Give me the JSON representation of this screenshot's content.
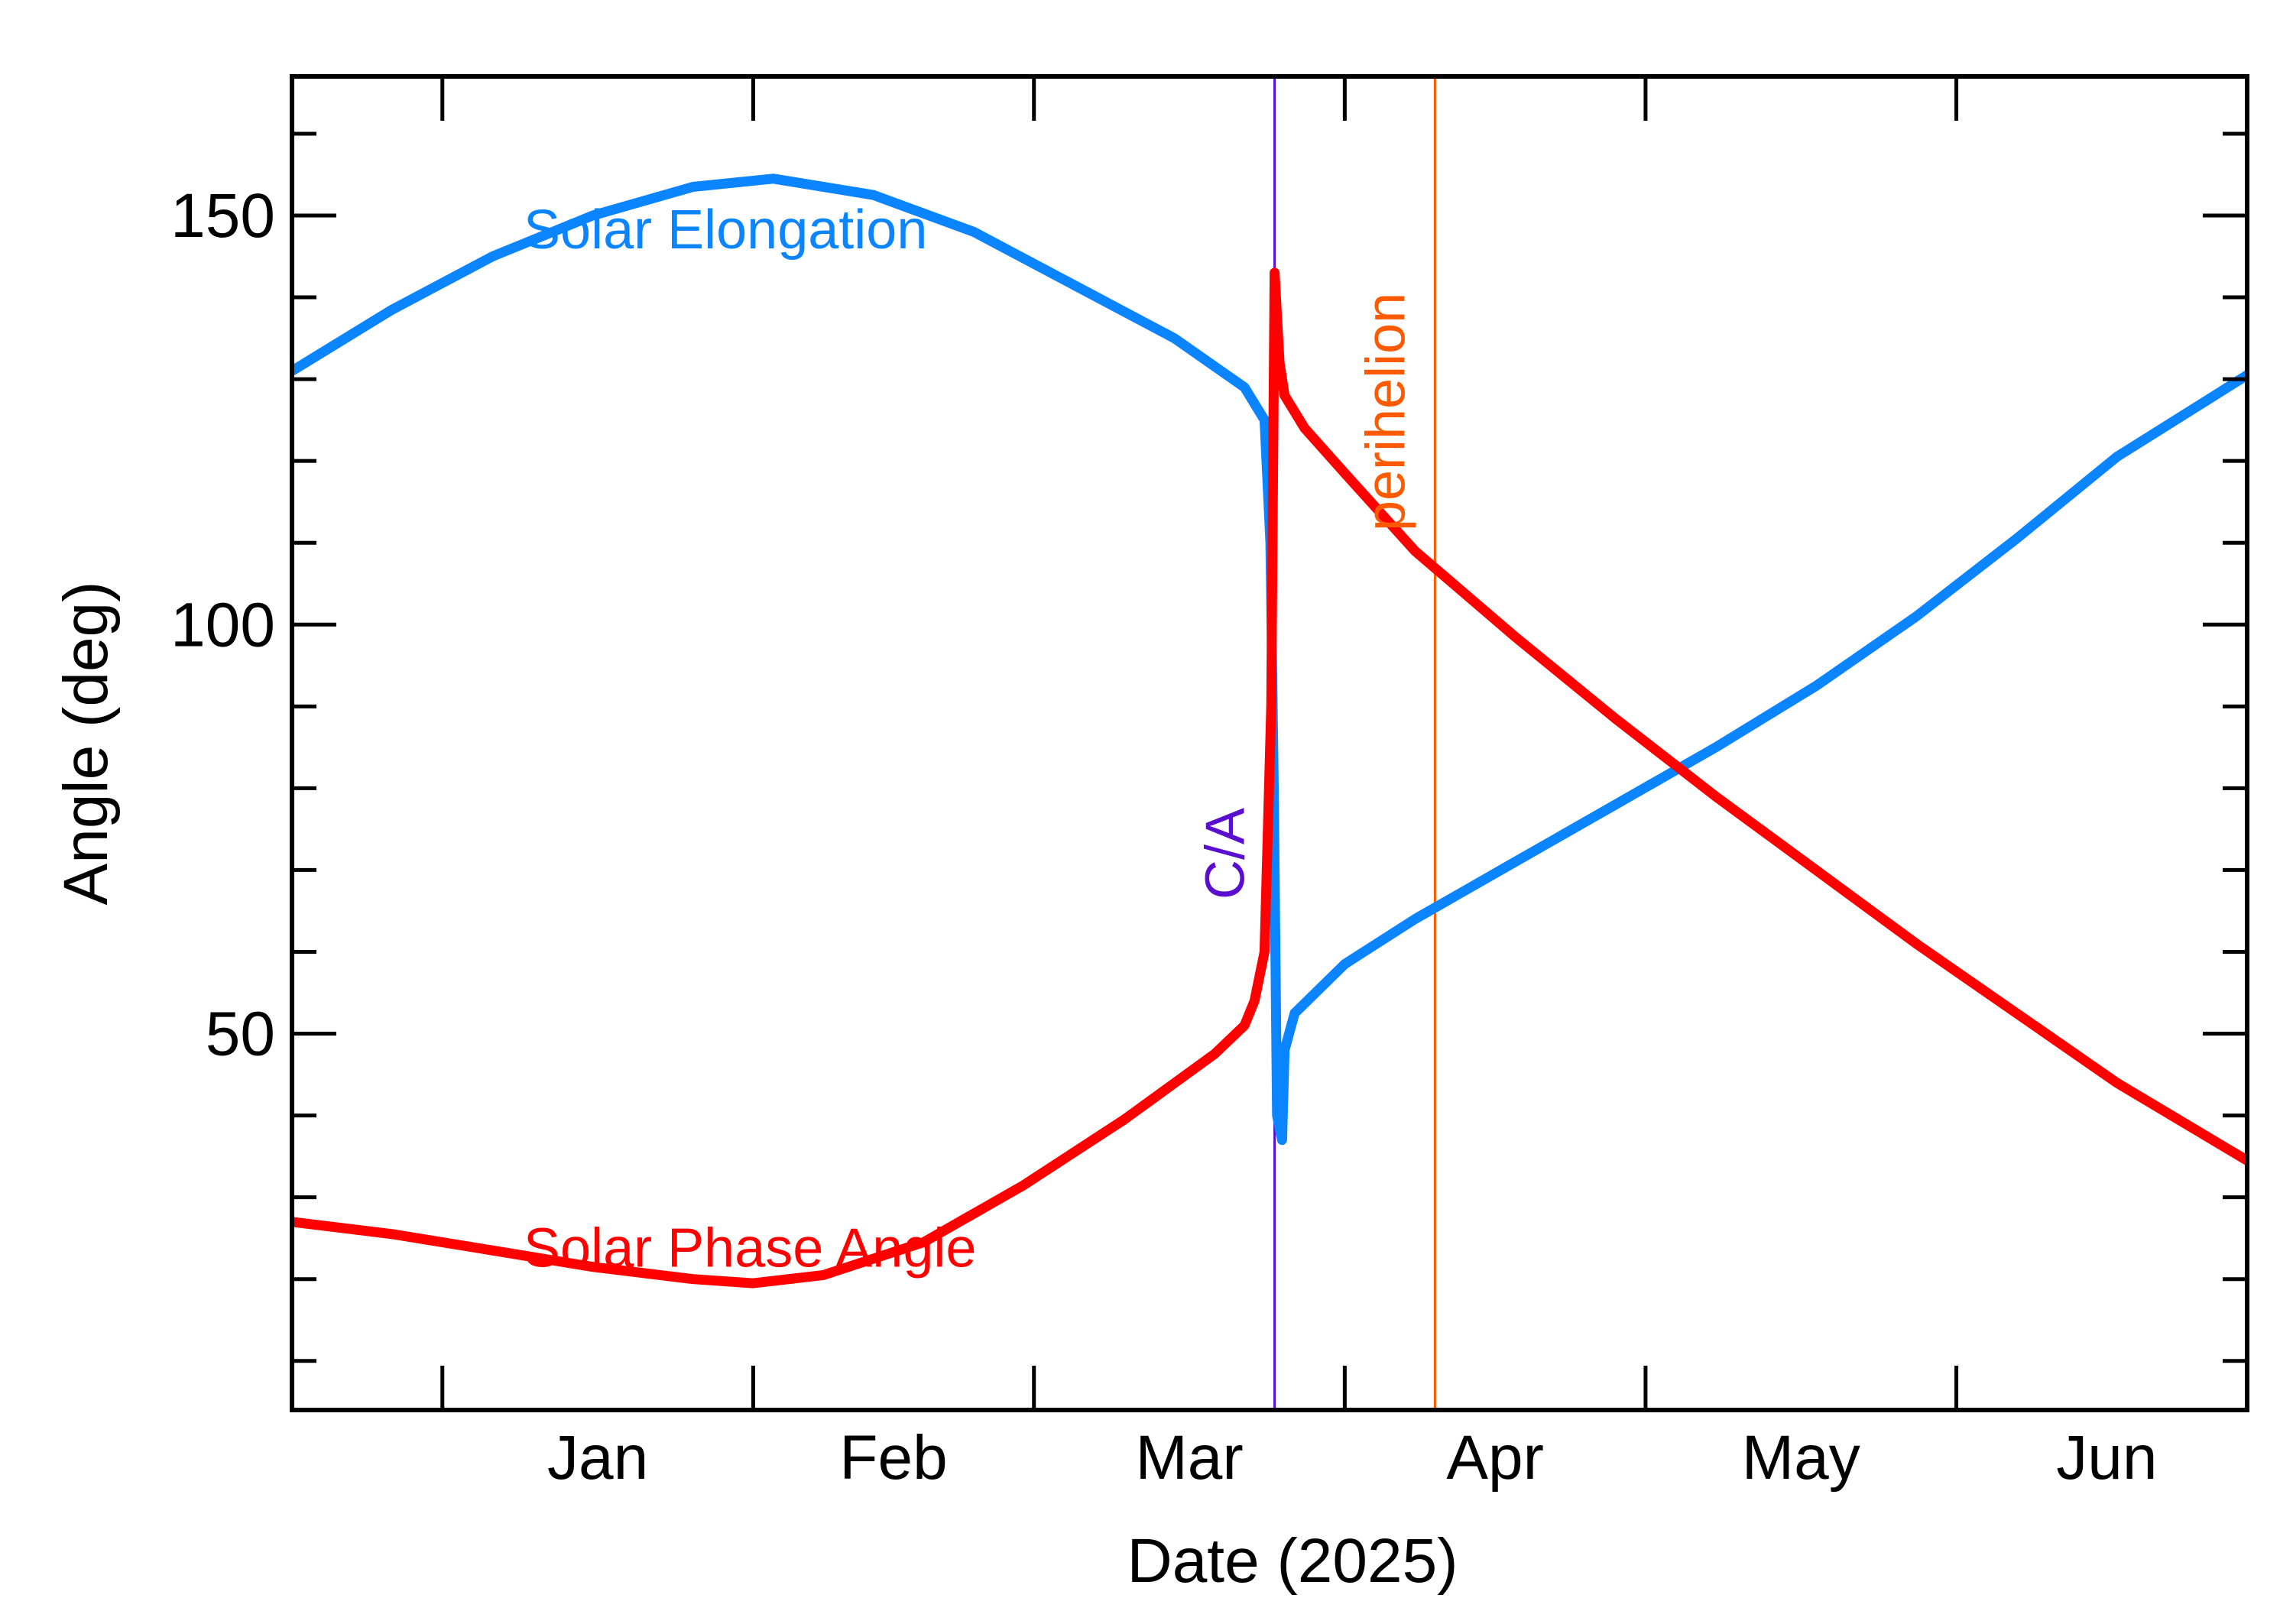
{
  "chart_data": {
    "type": "line",
    "xlabel": "Date (2025)",
    "ylabel": "Angle (deg)",
    "x_tick_labels": [
      "Jan",
      "Feb",
      "Mar",
      "Apr",
      "May",
      "Jun"
    ],
    "x_tick_dates": [
      "2025-01-01",
      "2025-02-01",
      "2025-03-01",
      "2025-04-01",
      "2025-05-01",
      "2025-06-01",
      "2025-07-01"
    ],
    "x_range": [
      "2024-12-17",
      "2025-06-30"
    ],
    "y_ticks": [
      50,
      100,
      150
    ],
    "y_minor_step": 10,
    "ylim": [
      4,
      167
    ],
    "grid": false,
    "series": [
      {
        "name": "Solar Elongation",
        "color": "#0a84ff",
        "points": [
          [
            "2024-12-17",
            131
          ],
          [
            "2024-12-27",
            138.5
          ],
          [
            "2025-01-06",
            145
          ],
          [
            "2025-01-16",
            150
          ],
          [
            "2025-01-26",
            153.5
          ],
          [
            "2025-02-03",
            154.5
          ],
          [
            "2025-02-13",
            152.5
          ],
          [
            "2025-02-23",
            148
          ],
          [
            "2025-03-05",
            141.5
          ],
          [
            "2025-03-15",
            135
          ],
          [
            "2025-03-22",
            129
          ],
          [
            "2025-03-24",
            125
          ],
          [
            "2025-03-24T14:00",
            110
          ],
          [
            "2025-03-24T22:00",
            80
          ],
          [
            "2025-03-25T06:00",
            40
          ],
          [
            "2025-03-25T18:00",
            37
          ],
          [
            "2025-03-26",
            48
          ],
          [
            "2025-03-27",
            52.5
          ],
          [
            "2025-04-01",
            58.5
          ],
          [
            "2025-04-08",
            64
          ],
          [
            "2025-04-18",
            71
          ],
          [
            "2025-04-28",
            78
          ],
          [
            "2025-05-08",
            85
          ],
          [
            "2025-05-18",
            92.5
          ],
          [
            "2025-05-28",
            101
          ],
          [
            "2025-06-07",
            110.5
          ],
          [
            "2025-06-17",
            120.5
          ],
          [
            "2025-06-30",
            130.5
          ]
        ]
      },
      {
        "name": "Solar Phase Angle",
        "color": "#ff0000",
        "points": [
          [
            "2024-12-17",
            27
          ],
          [
            "2024-12-27",
            25.5
          ],
          [
            "2025-01-06",
            23.5
          ],
          [
            "2025-01-16",
            21.5
          ],
          [
            "2025-01-26",
            20
          ],
          [
            "2025-02-01",
            19.5
          ],
          [
            "2025-02-08",
            20.5
          ],
          [
            "2025-02-18",
            24.5
          ],
          [
            "2025-02-28",
            31.5
          ],
          [
            "2025-03-10",
            39.5
          ],
          [
            "2025-03-19",
            47.5
          ],
          [
            "2025-03-22",
            51
          ],
          [
            "2025-03-23",
            54
          ],
          [
            "2025-03-24",
            60
          ],
          [
            "2025-03-24T16:00",
            90
          ],
          [
            "2025-03-25",
            143
          ],
          [
            "2025-03-25T12:00",
            132
          ],
          [
            "2025-03-26",
            128
          ],
          [
            "2025-03-28",
            124
          ],
          [
            "2025-04-01",
            118.5
          ],
          [
            "2025-04-08",
            109
          ],
          [
            "2025-04-18",
            98.5
          ],
          [
            "2025-04-28",
            88.5
          ],
          [
            "2025-05-08",
            79
          ],
          [
            "2025-05-18",
            70
          ],
          [
            "2025-05-28",
            61
          ],
          [
            "2025-06-07",
            52.5
          ],
          [
            "2025-06-17",
            44
          ],
          [
            "2025-06-30",
            34.5
          ]
        ]
      }
    ],
    "vertical_markers": [
      {
        "label": "C/A",
        "date": "2025-03-25",
        "color": "#5a0fd0"
      },
      {
        "label": "perihelion",
        "date": "2025-04-10",
        "color": "#ff5a00"
      }
    ]
  }
}
